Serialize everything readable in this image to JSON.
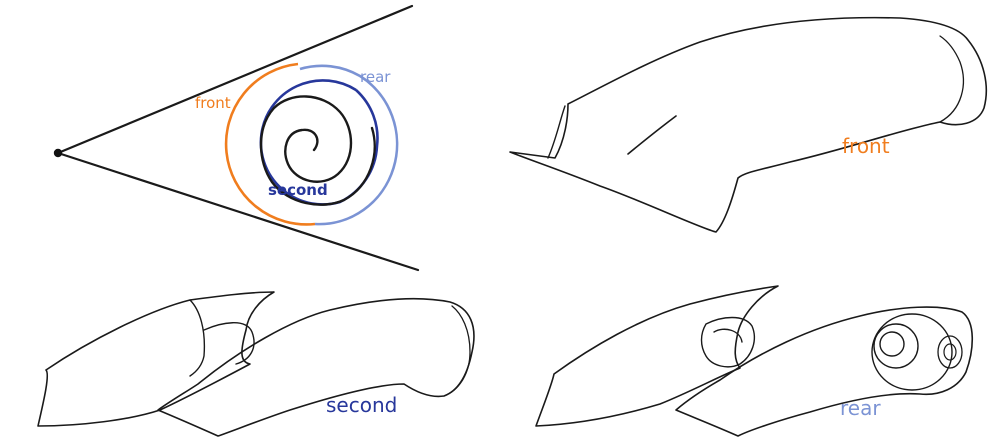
{
  "labels": {
    "cone_front": "front",
    "cone_rear": "rear",
    "cone_second": "second",
    "panel_front": "front",
    "panel_second": "second",
    "panel_rear": "rear"
  },
  "colors": {
    "front": "#f07d1e",
    "second": "#27379b",
    "rear": "#7b93d4",
    "ink": "#1a1a1a"
  }
}
